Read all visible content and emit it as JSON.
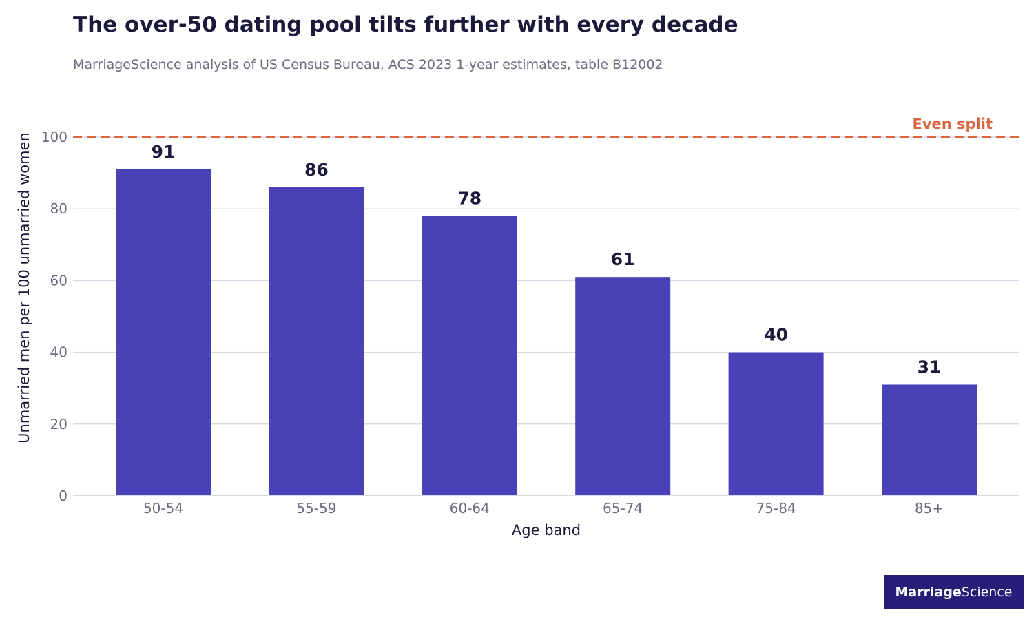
{
  "title": "The over-50 dating pool tilts further with every decade",
  "subtitle": "MarriageScience analysis of US Census Bureau, ACS 2023 1-year estimates, table B12002",
  "brand": {
    "part1": "Marriage",
    "part2": "Science"
  },
  "colors": {
    "bar": "#4a40b8",
    "reference": "#d9663e",
    "label": "#1c1a3a",
    "tick": "#6b6b80",
    "grid": "#d8d8e6",
    "brand_bg": "#261e78"
  },
  "chart_data": {
    "type": "bar",
    "categories": [
      "50-54",
      "55-59",
      "60-64",
      "65-74",
      "75-84",
      "85+"
    ],
    "values": [
      91,
      86,
      78,
      61,
      40,
      31
    ],
    "data_labels": [
      "91",
      "86",
      "78",
      "61",
      "40",
      "31"
    ],
    "xlabel": "Age band",
    "ylabel": "Unmarried men per 100 unmarried women",
    "ylim": [
      0,
      100
    ],
    "yticks": [
      0,
      20,
      40,
      60,
      80,
      100
    ],
    "grid": true,
    "reference_line": {
      "value": 100,
      "label": "Even split",
      "style": "dashed"
    }
  }
}
